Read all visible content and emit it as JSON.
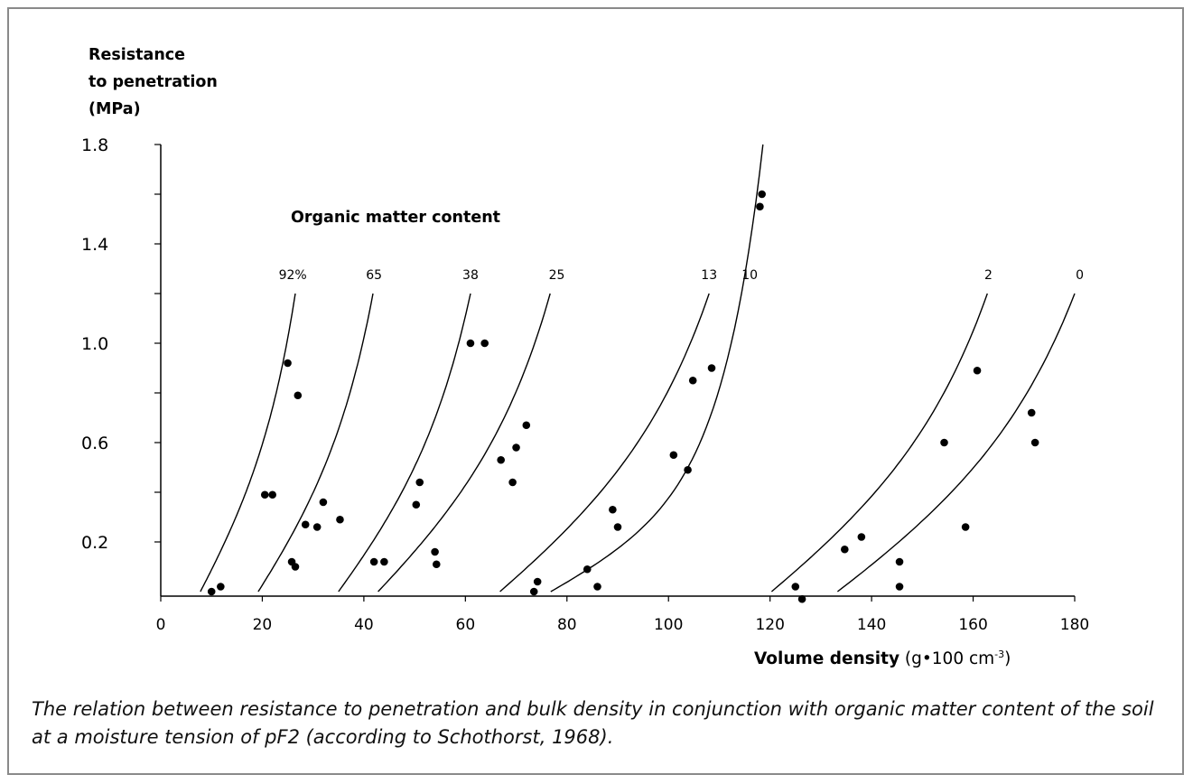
{
  "chart_data": {
    "type": "scatter",
    "title": "",
    "ylabel_lines": [
      "Resistance",
      "to penetration",
      "(MPa)"
    ],
    "xlabel_bold": "Volume density",
    "xlabel_unit_pre": "(g•100 cm",
    "xlabel_unit_sup": "-3",
    "xlabel_unit_post": ")",
    "legend_title": "Organic matter content",
    "xlim": [
      0,
      180
    ],
    "ylim": [
      0,
      1.8
    ],
    "x_ticks": [
      0,
      20,
      40,
      60,
      80,
      100,
      120,
      140,
      160,
      180
    ],
    "y_tick_labels": [
      0.2,
      0.6,
      1.0,
      1.4,
      1.8
    ],
    "y_minor_ticks": [
      0.4,
      0.8,
      1.2,
      1.6
    ],
    "grid": false,
    "series": [
      {
        "name": "92%",
        "curve": {
          "x0": 7.8,
          "x1": 26.5,
          "y1": 1.2
        },
        "label_x": 26.0,
        "points": [
          [
            10.0,
            0.0
          ],
          [
            11.8,
            0.02
          ],
          [
            20.5,
            0.39
          ],
          [
            22.0,
            0.39
          ],
          [
            27.0,
            0.79
          ],
          [
            25.0,
            0.92
          ]
        ]
      },
      {
        "name": "65",
        "curve": {
          "x0": 19.2,
          "x1": 41.8,
          "y1": 1.2
        },
        "label_x": 42.0,
        "points": [
          [
            26.5,
            0.1
          ],
          [
            25.8,
            0.12
          ],
          [
            28.5,
            0.27
          ],
          [
            30.8,
            0.26
          ],
          [
            32.0,
            0.36
          ],
          [
            35.3,
            0.29
          ]
        ]
      },
      {
        "name": "38",
        "curve": {
          "x0": 35.0,
          "x1": 61.0,
          "y1": 1.2
        },
        "label_x": 61.0,
        "points": [
          [
            42.0,
            0.12
          ],
          [
            44.0,
            0.12
          ],
          [
            50.3,
            0.35
          ],
          [
            51.0,
            0.44
          ],
          [
            54.0,
            0.16
          ],
          [
            54.3,
            0.11
          ],
          [
            61.0,
            1.0
          ],
          [
            63.8,
            1.0
          ]
        ]
      },
      {
        "name": "25",
        "curve": {
          "x0": 42.8,
          "x1": 76.7,
          "y1": 1.2
        },
        "label_x": 78.0,
        "points": [
          [
            67.0,
            0.53
          ],
          [
            69.3,
            0.44
          ],
          [
            70.0,
            0.58
          ],
          [
            72.0,
            0.67
          ],
          [
            73.5,
            0.0
          ],
          [
            74.2,
            0.04
          ]
        ]
      },
      {
        "name": "13",
        "curve": {
          "x0": 66.8,
          "x1": 108.0,
          "y1": 1.2
        },
        "label_x": 108.0,
        "points": [
          [
            84.0,
            0.09
          ],
          [
            86.0,
            0.02
          ],
          [
            89.0,
            0.33
          ],
          [
            90.0,
            0.26
          ],
          [
            101.0,
            0.55
          ],
          [
            103.8,
            0.49
          ],
          [
            104.8,
            0.85
          ],
          [
            108.5,
            0.9
          ]
        ]
      },
      {
        "name": "10",
        "curve": {
          "x0": 76.8,
          "x1": 118.6,
          "y1": 1.8
        },
        "label_x": 116.0,
        "points": [
          [
            118.0,
            1.55
          ],
          [
            118.4,
            1.6
          ]
        ]
      },
      {
        "name": "2",
        "curve": {
          "x0": 120.3,
          "x1": 162.8,
          "y1": 1.2
        },
        "label_x": 163.0,
        "points": [
          [
            125.0,
            0.02
          ],
          [
            126.3,
            -0.03
          ],
          [
            134.7,
            0.17
          ],
          [
            138.0,
            0.22
          ],
          [
            154.3,
            0.6
          ],
          [
            160.8,
            0.89
          ]
        ]
      },
      {
        "name": "0",
        "curve": {
          "x0": 133.3,
          "x1": 180.0,
          "y1": 1.2
        },
        "label_x": 181.0,
        "points": [
          [
            145.5,
            0.12
          ],
          [
            145.5,
            0.02
          ],
          [
            158.5,
            0.26
          ],
          [
            171.5,
            0.72
          ],
          [
            172.2,
            0.6
          ]
        ]
      }
    ]
  },
  "caption": "The relation between resistance to penetration and bulk density in conjunction with organic matter content of the soil at a moisture tension of pF2 (according to Schothorst, 1968)."
}
